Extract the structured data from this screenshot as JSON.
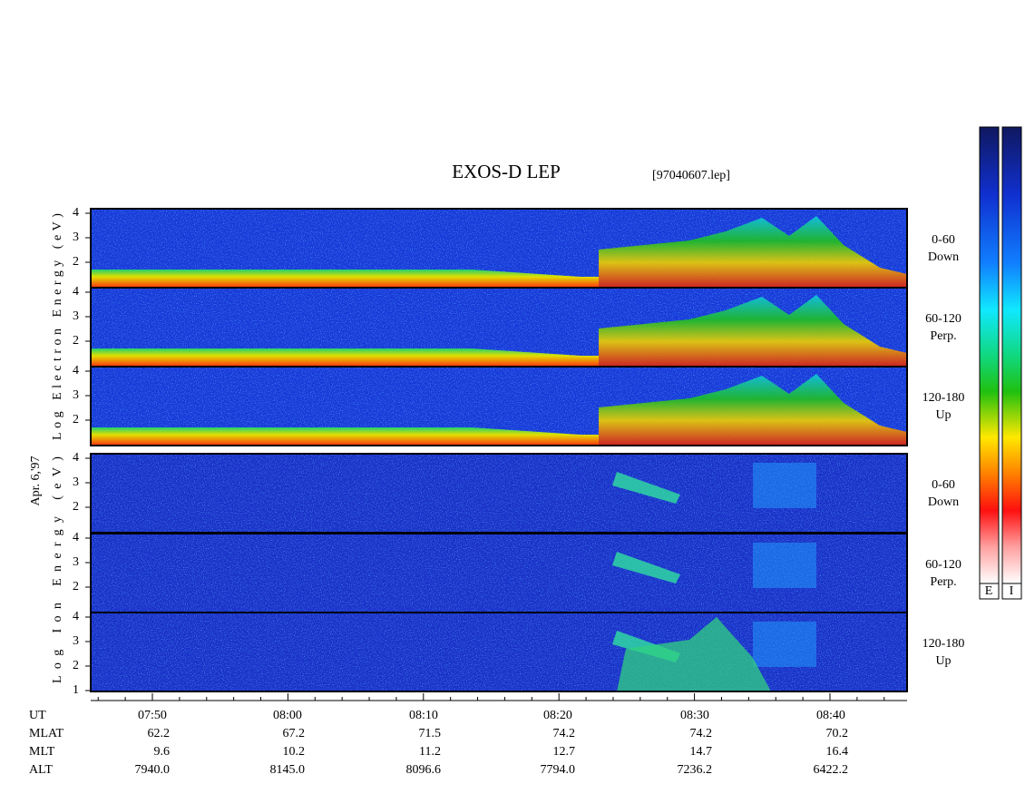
{
  "header": {
    "title": "EXOS-D LEP",
    "file": "[97040607.lep]"
  },
  "axis_labels": {
    "electron": "Log  Electron  Energy (eV)",
    "ion": "Log  Ion  Energy (eV)",
    "date": "Apr. 6,'97"
  },
  "panels": [
    {
      "ticks": [
        "4",
        "3",
        "2"
      ],
      "label": [
        "0-60",
        "Down"
      ]
    },
    {
      "ticks": [
        "4",
        "3",
        "2"
      ],
      "label": [
        "60-120",
        "Perp."
      ]
    },
    {
      "ticks": [
        "4",
        "3",
        "2"
      ],
      "label": [
        "120-180",
        "Up"
      ]
    },
    {
      "ticks": [
        "4",
        "3",
        "2"
      ],
      "label": [
        "0-60",
        "Down"
      ]
    },
    {
      "ticks": [
        "4",
        "3",
        "2"
      ],
      "label": [
        "60-120",
        "Perp."
      ]
    },
    {
      "ticks": [
        "4",
        "3",
        "2",
        "1"
      ],
      "label": [
        "120-180",
        "Up"
      ]
    }
  ],
  "colorbar": [
    "E",
    "I"
  ],
  "table": {
    "rows": [
      [
        "UT",
        "07:50",
        "08:00",
        "08:10",
        "08:20",
        "08:30",
        "08:40"
      ],
      [
        "MLAT",
        "62.2",
        "67.2",
        "71.5",
        "74.2",
        "74.2",
        "70.2"
      ],
      [
        "MLT",
        "9.6",
        "10.2",
        "11.2",
        "12.7",
        "14.7",
        "16.4"
      ],
      [
        "ALT",
        "7940.0",
        "8145.0",
        "8096.6",
        "7794.0",
        "7236.2",
        "6422.2"
      ]
    ]
  }
}
